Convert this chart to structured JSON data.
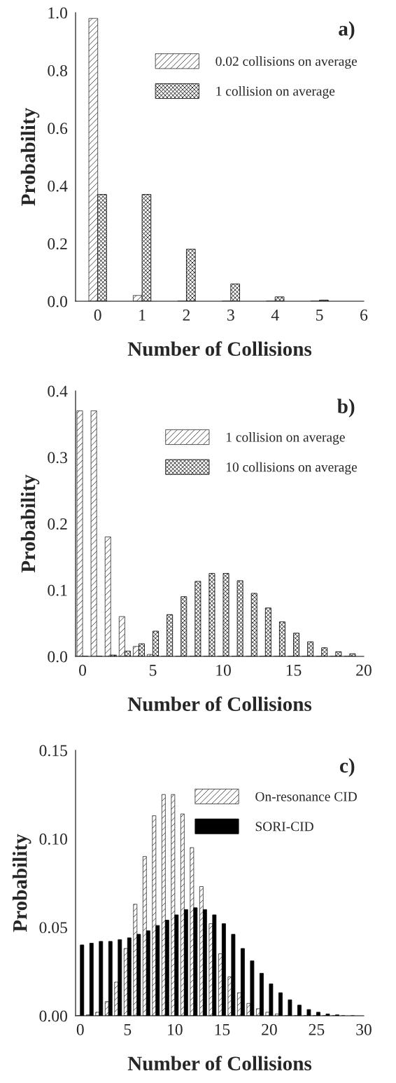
{
  "chart_data": [
    {
      "type": "bar",
      "xlabel": "Number of Collisions",
      "ylabel": "Probability",
      "annotations": [
        "a)"
      ],
      "x": [
        0,
        1,
        2,
        3,
        4,
        5
      ],
      "series": [
        {
          "name": "0.02 collisions on average",
          "color": "#333333",
          "values": [
            0.98,
            0.02,
            0.0,
            0.0,
            0.0,
            0.0
          ]
        },
        {
          "name": "1 collision on average",
          "color": "#000000",
          "values": [
            0.37,
            0.37,
            0.18,
            0.06,
            0.015,
            0.004
          ]
        }
      ],
      "xlim": [
        -0.5,
        6
      ],
      "xticks": [
        0,
        1,
        2,
        3,
        4,
        5,
        6
      ],
      "ylim": [
        0,
        1
      ],
      "yticks": [
        {
          "value": 0,
          "label": "0.0"
        },
        {
          "value": 0.2,
          "label": "0.2"
        },
        {
          "value": 0.4,
          "label": "0.4"
        },
        {
          "value": 0.6,
          "label": "0.6"
        },
        {
          "value": 0.8,
          "label": "0.8"
        },
        {
          "value": 1,
          "label": "1.0"
        }
      ],
      "legend": "top right",
      "grid": false
    },
    {
      "type": "bar",
      "xlabel": "Number of Collisions",
      "ylabel": "Probability",
      "annotations": [
        "b)"
      ],
      "x": [
        0,
        1,
        2,
        3,
        4,
        5,
        6,
        7,
        8,
        9,
        10,
        11,
        12,
        13,
        14,
        15,
        16,
        17,
        18,
        19
      ],
      "series": [
        {
          "name": "1 collision on average",
          "color": "#333333",
          "values": [
            0.37,
            0.37,
            0.18,
            0.06,
            0.015,
            0.003,
            0,
            0,
            0,
            0,
            0,
            0,
            0,
            0,
            0,
            0,
            0,
            0,
            0,
            0
          ]
        },
        {
          "name": "10 collisions on average",
          "color": "#000000",
          "values": [
            0,
            0,
            0.002,
            0.008,
            0.019,
            0.038,
            0.063,
            0.09,
            0.113,
            0.125,
            0.125,
            0.114,
            0.095,
            0.073,
            0.052,
            0.035,
            0.022,
            0.013,
            0.007,
            0.004
          ]
        }
      ],
      "xlim": [
        -0.5,
        20
      ],
      "xticks": [
        0,
        5,
        10,
        15,
        20
      ],
      "ylim": [
        0,
        0.4
      ],
      "yticks": [
        {
          "value": 0,
          "label": "0.0"
        },
        0.1,
        0.2,
        0.3,
        0.4
      ],
      "legend": "top right",
      "grid": false
    },
    {
      "type": "bar",
      "xlabel": "Number of Collisions",
      "ylabel": "Probability",
      "annotations": [
        "c)"
      ],
      "x": [
        0,
        1,
        2,
        3,
        4,
        5,
        6,
        7,
        8,
        9,
        10,
        11,
        12,
        13,
        14,
        15,
        16,
        17,
        18,
        19,
        20,
        21,
        22,
        23,
        24,
        25,
        26,
        27,
        28,
        29
      ],
      "series": [
        {
          "name": "On-resonance CID",
          "color": "#333333",
          "values": [
            0,
            0.0005,
            0.002,
            0.008,
            0.019,
            0.038,
            0.063,
            0.09,
            0.113,
            0.125,
            0.125,
            0.114,
            0.095,
            0.073,
            0.052,
            0.035,
            0.022,
            0.013,
            0.007,
            0.004,
            0.002,
            0.001,
            0,
            0,
            0,
            0,
            0,
            0,
            0,
            0
          ]
        },
        {
          "name": "SORI-CID",
          "color": "#000000",
          "values": [
            0.04,
            0.041,
            0.042,
            0.042,
            0.043,
            0.044,
            0.046,
            0.048,
            0.051,
            0.054,
            0.057,
            0.06,
            0.061,
            0.06,
            0.057,
            0.052,
            0.046,
            0.038,
            0.031,
            0.024,
            0.018,
            0.013,
            0.009,
            0.006,
            0.0035,
            0.002,
            0.001,
            0.0005,
            null,
            null
          ]
        }
      ],
      "xlim": [
        -0.5,
        30
      ],
      "xticks": [
        0,
        5,
        10,
        15,
        20,
        25,
        30
      ],
      "ylim": [
        0,
        0.15
      ],
      "yticks": [
        {
          "value": 0,
          "label": "0.00"
        },
        {
          "value": 0.05,
          "label": "0.05"
        },
        {
          "value": 0.1,
          "label": "0.10"
        },
        {
          "value": 0.15,
          "label": "0.15"
        }
      ],
      "legend": "top right",
      "grid": false
    }
  ]
}
